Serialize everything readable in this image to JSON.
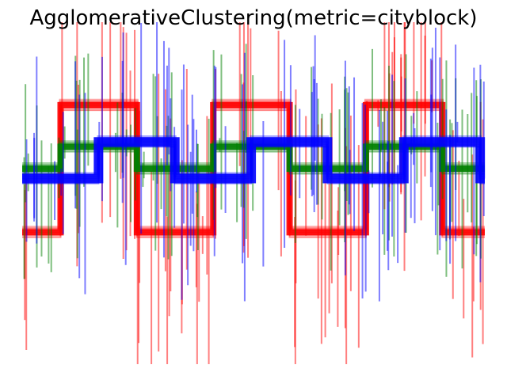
{
  "chart_data": {
    "type": "line",
    "title": "AgglomerativeClustering(metric=cityblock)",
    "xlabel": "",
    "ylabel": "",
    "axes_visible": false,
    "grid": false,
    "xlim": [
      0,
      2000
    ],
    "ylim": [
      -3.8,
      3.2
    ],
    "series": [
      {
        "color": "#ff0000",
        "alpha": 0.5,
        "waveform": "square",
        "period": 660,
        "phase": 165,
        "high": 1.5,
        "low": -1.1,
        "noise": {
          "count": 80,
          "max": 3.4
        }
      },
      {
        "color": "#008000",
        "alpha": 0.5,
        "waveform": "square",
        "period": 660,
        "phase": 165,
        "high": 0.65,
        "low": 0.2,
        "noise": {
          "count": 75,
          "max": 2.3
        }
      },
      {
        "color": "#0000ff",
        "alpha": 0.5,
        "waveform": "square",
        "period": 660,
        "phase": 330,
        "high": 0.75,
        "low": 0.0,
        "noise": {
          "count": 75,
          "max": 2.6
        }
      }
    ]
  }
}
